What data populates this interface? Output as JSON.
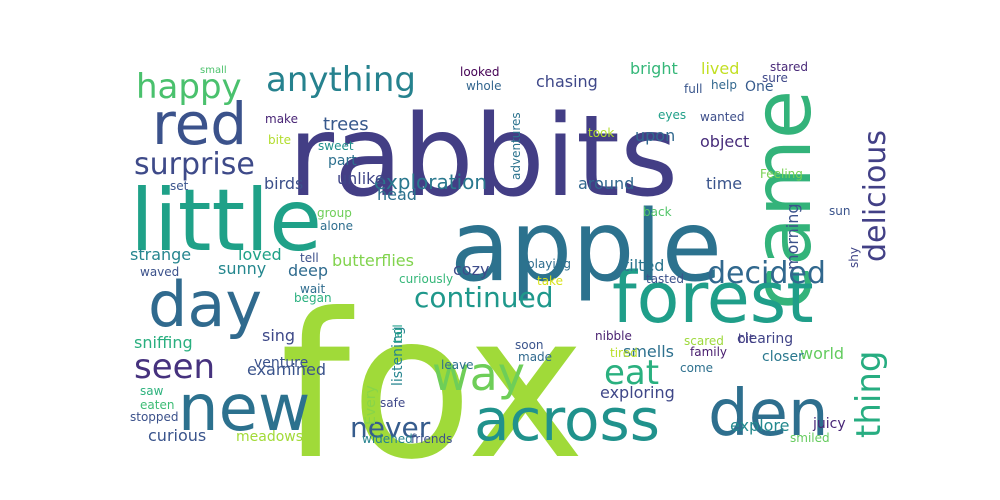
{
  "words": [
    {
      "text": "fox",
      "color": "#a0da39"
    },
    {
      "text": "rabbits",
      "color": "#433e85"
    },
    {
      "text": "apple",
      "color": "#2c728e"
    },
    {
      "text": "little",
      "color": "#1fa188"
    },
    {
      "text": "came",
      "color": "#33b37a"
    },
    {
      "text": "forest",
      "color": "#1f9e89"
    },
    {
      "text": "den",
      "color": "#2e6f8e"
    },
    {
      "text": "new",
      "color": "#2c718e"
    },
    {
      "text": "across",
      "color": "#20928c"
    },
    {
      "text": "day",
      "color": "#306a8e"
    },
    {
      "text": "red",
      "color": "#3b528b"
    },
    {
      "text": "anything",
      "color": "#26828e"
    },
    {
      "text": "happy",
      "color": "#4ac16d"
    },
    {
      "text": "surprise",
      "color": "#3e4a89"
    },
    {
      "text": "delicious",
      "color": "#424086"
    },
    {
      "text": "decided",
      "color": "#31688e"
    },
    {
      "text": "continued",
      "color": "#1f988b"
    },
    {
      "text": "seen",
      "color": "#46327e"
    },
    {
      "text": "thing",
      "color": "#27ad81"
    },
    {
      "text": "eat",
      "color": "#2ab07f"
    },
    {
      "text": "way",
      "color": "#6ece58"
    },
    {
      "text": "never",
      "color": "#365c8d"
    },
    {
      "text": "exploration",
      "color": "#2a788e"
    },
    {
      "text": "chasing",
      "color": "#3f4889"
    },
    {
      "text": "trees",
      "color": "#38598c"
    },
    {
      "text": "bright",
      "color": "#35b779"
    },
    {
      "text": "lived",
      "color": "#c2df23"
    },
    {
      "text": "One",
      "color": "#375b8d"
    },
    {
      "text": "upon",
      "color": "#31688e"
    },
    {
      "text": "object",
      "color": "#472c7a"
    },
    {
      "text": "time",
      "color": "#3a548c"
    },
    {
      "text": "around",
      "color": "#31678e"
    },
    {
      "text": "birds",
      "color": "#3c4f8a"
    },
    {
      "text": "unlike",
      "color": "#404688"
    },
    {
      "text": "part",
      "color": "#2d708e"
    },
    {
      "text": "head",
      "color": "#2d718e"
    },
    {
      "text": "morning",
      "color": "#3b518b"
    },
    {
      "text": "butterflies",
      "color": "#81d34d"
    },
    {
      "text": "cozy",
      "color": "#3e4c8a"
    },
    {
      "text": "tilted",
      "color": "#2b758e"
    },
    {
      "text": "strange",
      "color": "#25858e"
    },
    {
      "text": "sunny",
      "color": "#24878e"
    },
    {
      "text": "loved",
      "color": "#1fa187"
    },
    {
      "text": "deep",
      "color": "#2f6b8e"
    },
    {
      "text": "smells",
      "color": "#2d708e"
    },
    {
      "text": "world",
      "color": "#63cb5f"
    },
    {
      "text": "sing",
      "color": "#3e4989"
    },
    {
      "text": "venture",
      "color": "#3b528b"
    },
    {
      "text": "examined",
      "color": "#3a538b"
    },
    {
      "text": "sniffing",
      "color": "#29af7f"
    },
    {
      "text": "curious",
      "color": "#3a548c"
    },
    {
      "text": "meadows",
      "color": "#a2da37"
    },
    {
      "text": "exploring",
      "color": "#3f4788"
    },
    {
      "text": "explore",
      "color": "#23898e"
    },
    {
      "text": "listening",
      "color": "#25848e"
    },
    {
      "text": "Every",
      "color": "#88d548"
    },
    {
      "text": "clearing",
      "color": "#414487"
    },
    {
      "text": "closer",
      "color": "#2a788e"
    },
    {
      "text": "juicy",
      "color": "#482677"
    },
    {
      "text": "smiled",
      "color": "#65cb5e"
    },
    {
      "text": "small",
      "color": "#4cc26c"
    },
    {
      "text": "looked",
      "color": "#440154"
    },
    {
      "text": "whole",
      "color": "#32658e"
    },
    {
      "text": "full",
      "color": "#39558c"
    },
    {
      "text": "help",
      "color": "#31678e"
    },
    {
      "text": "sure",
      "color": "#3f4889"
    },
    {
      "text": "stared",
      "color": "#482878"
    },
    {
      "text": "make",
      "color": "#482475"
    },
    {
      "text": "bite",
      "color": "#b2dd2d"
    },
    {
      "text": "sweet",
      "color": "#21908d"
    },
    {
      "text": "adventures",
      "color": "#2c738e"
    },
    {
      "text": "took",
      "color": "#b2dd2d"
    },
    {
      "text": "eyes",
      "color": "#1f9f88"
    },
    {
      "text": "wanted",
      "color": "#3d4e8a"
    },
    {
      "text": "Feeling",
      "color": "#77d153"
    },
    {
      "text": "set",
      "color": "#3a548c"
    },
    {
      "text": "group",
      "color": "#6ece58"
    },
    {
      "text": "alone",
      "color": "#2e6e8e"
    },
    {
      "text": "back",
      "color": "#52c569"
    },
    {
      "text": "sun",
      "color": "#3a538b"
    },
    {
      "text": "shy",
      "color": "#404588"
    },
    {
      "text": "playing",
      "color": "#2e6d8e"
    },
    {
      "text": "take",
      "color": "#d8e219"
    },
    {
      "text": "tasted",
      "color": "#3b528b"
    },
    {
      "text": "tell",
      "color": "#3c508b"
    },
    {
      "text": "waved",
      "color": "#3b518b"
    },
    {
      "text": "wait",
      "color": "#2f6c8e"
    },
    {
      "text": "began",
      "color": "#2ab07f"
    },
    {
      "text": "curiously",
      "color": "#35b779"
    },
    {
      "text": "tail",
      "color": "#1f9e89"
    },
    {
      "text": "soon",
      "color": "#3a548c"
    },
    {
      "text": "nibble",
      "color": "#481f70"
    },
    {
      "text": "scared",
      "color": "#9dd93b"
    },
    {
      "text": "bit",
      "color": "#433d84"
    },
    {
      "text": "made",
      "color": "#30698e"
    },
    {
      "text": "leave",
      "color": "#2d708e"
    },
    {
      "text": "tired",
      "color": "#b8de29"
    },
    {
      "text": "family",
      "color": "#481c6e"
    },
    {
      "text": "come",
      "color": "#2d708e"
    },
    {
      "text": "saw",
      "color": "#2db27d"
    },
    {
      "text": "eaten",
      "color": "#3dbc74"
    },
    {
      "text": "stopped",
      "color": "#3b518b"
    },
    {
      "text": "safe",
      "color": "#3f4889"
    },
    {
      "text": "widened",
      "color": "#26828e"
    },
    {
      "text": "friends",
      "color": "#3c508b"
    }
  ]
}
